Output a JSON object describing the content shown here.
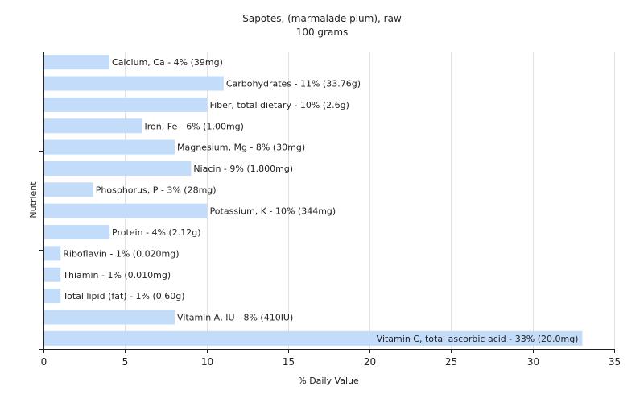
{
  "chart_data": {
    "type": "bar",
    "orientation": "horizontal",
    "title": "Sapotes, (marmalade plum), raw",
    "subtitle": "100 grams",
    "xlabel": "% Daily Value",
    "ylabel": "Nutrient",
    "xlim": [
      0,
      35
    ],
    "x_ticks": [
      0,
      5,
      10,
      15,
      20,
      25,
      30,
      35
    ],
    "grid": true,
    "bar_color": "#c2dcfa",
    "categories": [
      "Calcium, Ca",
      "Carbohydrates",
      "Fiber, total dietary",
      "Iron, Fe",
      "Magnesium, Mg",
      "Niacin",
      "Phosphorus, P",
      "Potassium, K",
      "Protein",
      "Riboflavin",
      "Thiamin",
      "Total lipid (fat)",
      "Vitamin A, IU",
      "Vitamin C, total ascorbic acid"
    ],
    "values": [
      4,
      11,
      10,
      6,
      8,
      9,
      3,
      10,
      4,
      1,
      1,
      1,
      8,
      33
    ],
    "labels": [
      "Calcium, Ca - 4% (39mg)",
      "Carbohydrates - 11% (33.76g)",
      "Fiber, total dietary - 10% (2.6g)",
      "Iron, Fe - 6% (1.00mg)",
      "Magnesium, Mg - 8% (30mg)",
      "Niacin - 9% (1.800mg)",
      "Phosphorus, P - 3% (28mg)",
      "Potassium, K - 10% (344mg)",
      "Protein - 4% (2.12g)",
      "Riboflavin - 1% (0.020mg)",
      "Thiamin - 1% (0.010mg)",
      "Total lipid (fat) - 1% (0.60g)",
      "Vitamin A, IU - 8% (410IU)",
      "Vitamin C, total ascorbic acid - 33% (20.0mg)"
    ]
  }
}
